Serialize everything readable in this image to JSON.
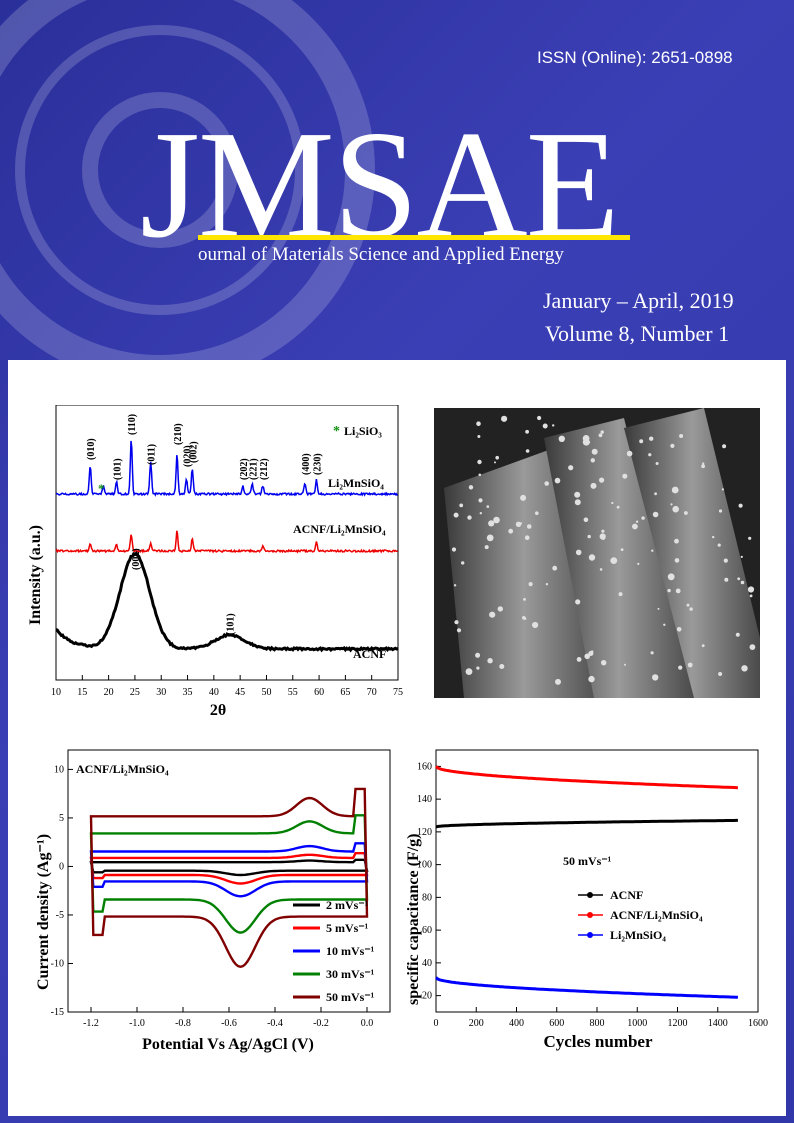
{
  "header": {
    "issn": "ISSN (Online): 2651-0898",
    "logo_text": "JMSAE",
    "journal_name": "ournal of Materials Science and Applied Energy",
    "issue_date": "January – April, 2019",
    "issue_volume": "Volume 8, Number 1"
  },
  "colors": {
    "background": "#3136a8",
    "accent_bar": "#ffe600"
  },
  "xrd": {
    "ylabel": "Intensity (a.u.)",
    "xlabel": "2θ",
    "x_ticks": [
      "10",
      "15",
      "20",
      "25",
      "30",
      "35",
      "40",
      "45",
      "50",
      "55",
      "60",
      "65",
      "70",
      "75"
    ],
    "legend_star": "Li₂SiO₃",
    "label_li2mnsio4": "Li₂MnSiO₄",
    "label_acnf_li2mnsio4": "ACNF/Li₂MnSiO₄",
    "label_acnf": "ACNF",
    "peak_labels": [
      {
        "text": "(010)",
        "x": 16.5
      },
      {
        "text": "(101)",
        "x": 21.5
      },
      {
        "text": "(110)",
        "x": 24.3
      },
      {
        "text": "(011)",
        "x": 28.0
      },
      {
        "text": "(210)",
        "x": 33.0
      },
      {
        "text": "(020)",
        "x": 34.8
      },
      {
        "text": "(002)",
        "x": 35.9
      },
      {
        "text": "(202)",
        "x": 45.5
      },
      {
        "text": "(221)",
        "x": 47.3
      },
      {
        "text": "(212)",
        "x": 49.3
      },
      {
        "text": "(400)",
        "x": 57.3
      },
      {
        "text": "(230)",
        "x": 59.5
      }
    ],
    "acnf_peak_labels": [
      {
        "text": "(002)",
        "x": 25.0
      },
      {
        "text": "(101)",
        "x": 43.0
      }
    ]
  },
  "cv": {
    "inset_label": "ACNF/Li₂MnSiO₄",
    "xlabel": "Potential Vs Ag/AgCl (V)",
    "ylabel": "Current density (Ag⁻¹)",
    "x_ticks": [
      "-1.2",
      "-1.0",
      "-0.8",
      "-0.6",
      "-0.4",
      "-0.2",
      "0.0"
    ],
    "y_ticks": [
      "-15",
      "-10",
      "-5",
      "0",
      "5",
      "10"
    ],
    "series": [
      {
        "name": "2 mVs⁻¹",
        "color": "#000000"
      },
      {
        "name": "5 mVs⁻¹",
        "color": "#ff0000"
      },
      {
        "name": "10 mVs⁻¹",
        "color": "#0000ff"
      },
      {
        "name": "30 mVs⁻¹",
        "color": "#008000"
      },
      {
        "name": "50 mVs⁻¹",
        "color": "#800000"
      }
    ]
  },
  "cycle": {
    "xlabel": "Cycles number",
    "ylabel": "specific capacitance (F/g)",
    "x_ticks": [
      "0",
      "200",
      "400",
      "600",
      "800",
      "1000",
      "1200",
      "1400",
      "1600"
    ],
    "y_ticks": [
      "20",
      "40",
      "60",
      "80",
      "100",
      "120",
      "140",
      "160"
    ],
    "note": "50 mVs⁻¹",
    "series": [
      {
        "name": "ACNF",
        "color": "#000000",
        "start": 123,
        "end": 127
      },
      {
        "name": "ACNF/Li₂MnSiO₄",
        "color": "#ff0000",
        "start": 160,
        "end": 147
      },
      {
        "name": "Li₂MnSiO₄",
        "color": "#0000ff",
        "start": 31,
        "end": 19
      }
    ]
  }
}
